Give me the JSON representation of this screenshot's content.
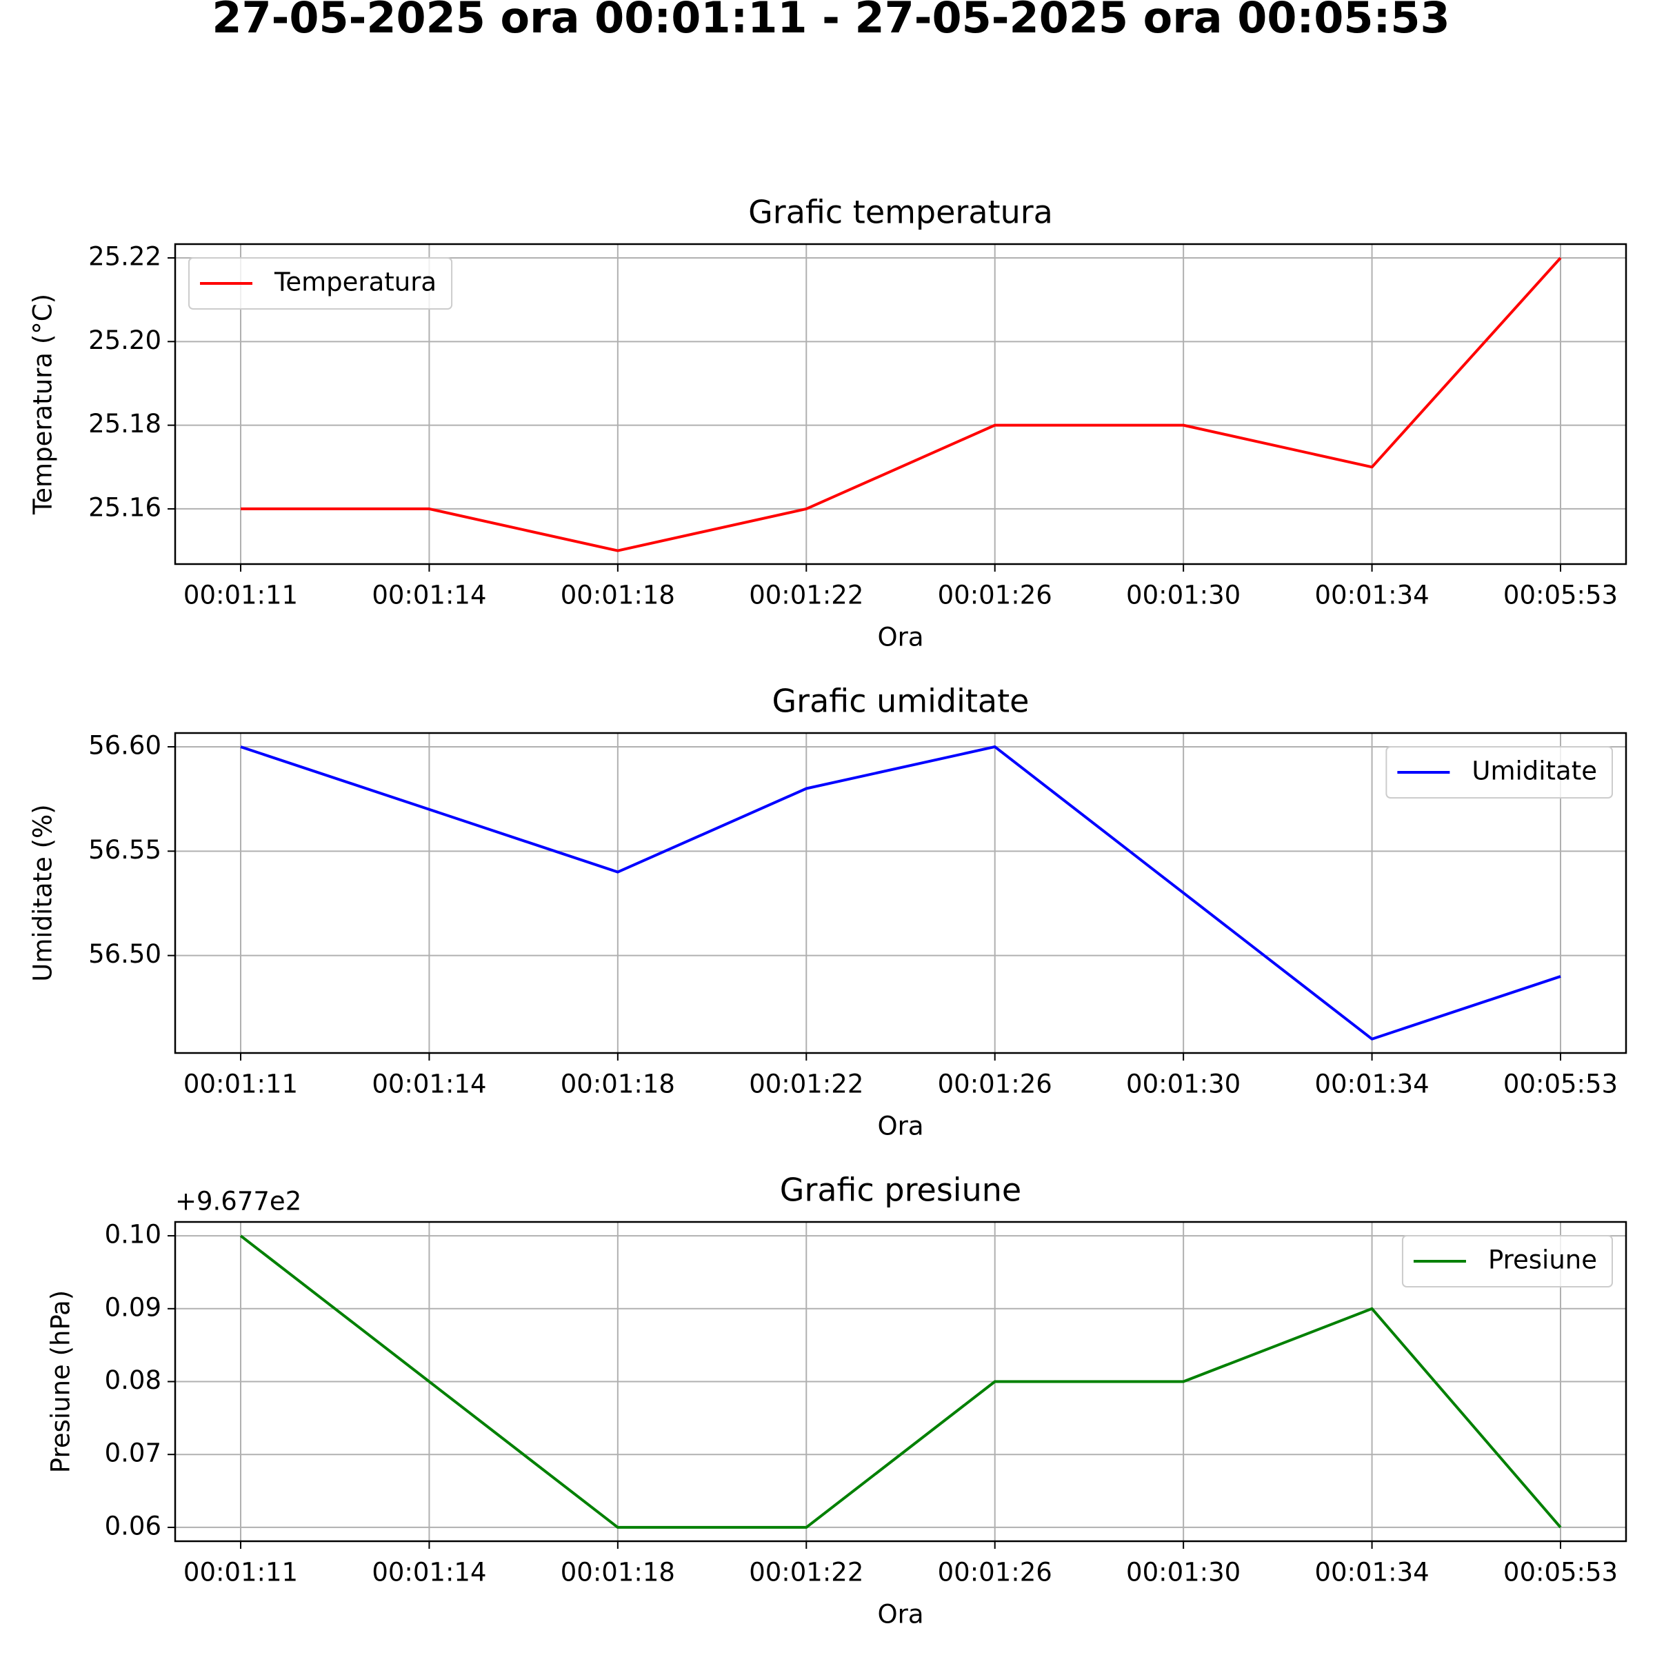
{
  "title": "27-05-2025 ora 00:01:11 - 27-05-2025 ora 00:05:53",
  "chart_data": [
    {
      "type": "line",
      "title": "Grafic temperatura",
      "x_label": "Ora",
      "y_label": "Temperatura (°C)",
      "categories": [
        "00:01:11",
        "00:01:14",
        "00:01:18",
        "00:01:22",
        "00:01:26",
        "00:01:30",
        "00:01:34",
        "00:05:53"
      ],
      "series": [
        {
          "name": "Temperatura",
          "color": "#ff0000",
          "values": [
            25.16,
            25.16,
            25.15,
            25.16,
            25.18,
            25.18,
            25.17,
            25.22
          ]
        }
      ],
      "ylim": [
        25.1468,
        25.2233
      ],
      "yticks": [
        25.16,
        25.18,
        {
          "value": 25.2,
          "label": "25.20"
        },
        25.22
      ],
      "grid": true,
      "legend": "upper left"
    },
    {
      "type": "line",
      "title": "Grafic umiditate",
      "x_label": "Ora",
      "y_label": "Umiditate (%)",
      "categories": [
        "00:01:11",
        "00:01:14",
        "00:01:18",
        "00:01:22",
        "00:01:26",
        "00:01:30",
        "00:01:34",
        "00:05:53"
      ],
      "series": [
        {
          "name": "Umiditate",
          "color": "#0000ff",
          "values": [
            56.6,
            56.57,
            56.54,
            56.58,
            56.6,
            56.53,
            56.46,
            56.49
          ]
        }
      ],
      "ylim": [
        56.4533,
        56.6066
      ],
      "yticks": [
        {
          "value": 56.5,
          "label": "56.50"
        },
        56.55,
        {
          "value": 56.6,
          "label": "56.60"
        }
      ],
      "grid": true,
      "legend": "upper right"
    },
    {
      "type": "line",
      "title": "Grafic presiune",
      "x_label": "Ora",
      "y_label": "Presiune (hPa)",
      "offset_label": "+9.677e2",
      "categories": [
        "00:01:11",
        "00:01:14",
        "00:01:18",
        "00:01:22",
        "00:01:26",
        "00:01:30",
        "00:01:34",
        "00:05:53"
      ],
      "series": [
        {
          "name": "Presiune",
          "color": "#008000",
          "values": [
            0.1,
            0.08,
            0.06,
            0.06,
            0.08,
            0.08,
            0.09,
            0.06
          ]
        }
      ],
      "ylim": [
        0.0581,
        0.1019
      ],
      "yticks": [
        {
          "value": 0.06,
          "label": "0.06"
        },
        {
          "value": 0.07,
          "label": "0.07"
        },
        {
          "value": 0.08,
          "label": "0.08"
        },
        {
          "value": 0.09,
          "label": "0.09"
        },
        {
          "value": 0.1,
          "label": "0.10"
        }
      ],
      "grid": true,
      "legend": "upper right"
    }
  ]
}
